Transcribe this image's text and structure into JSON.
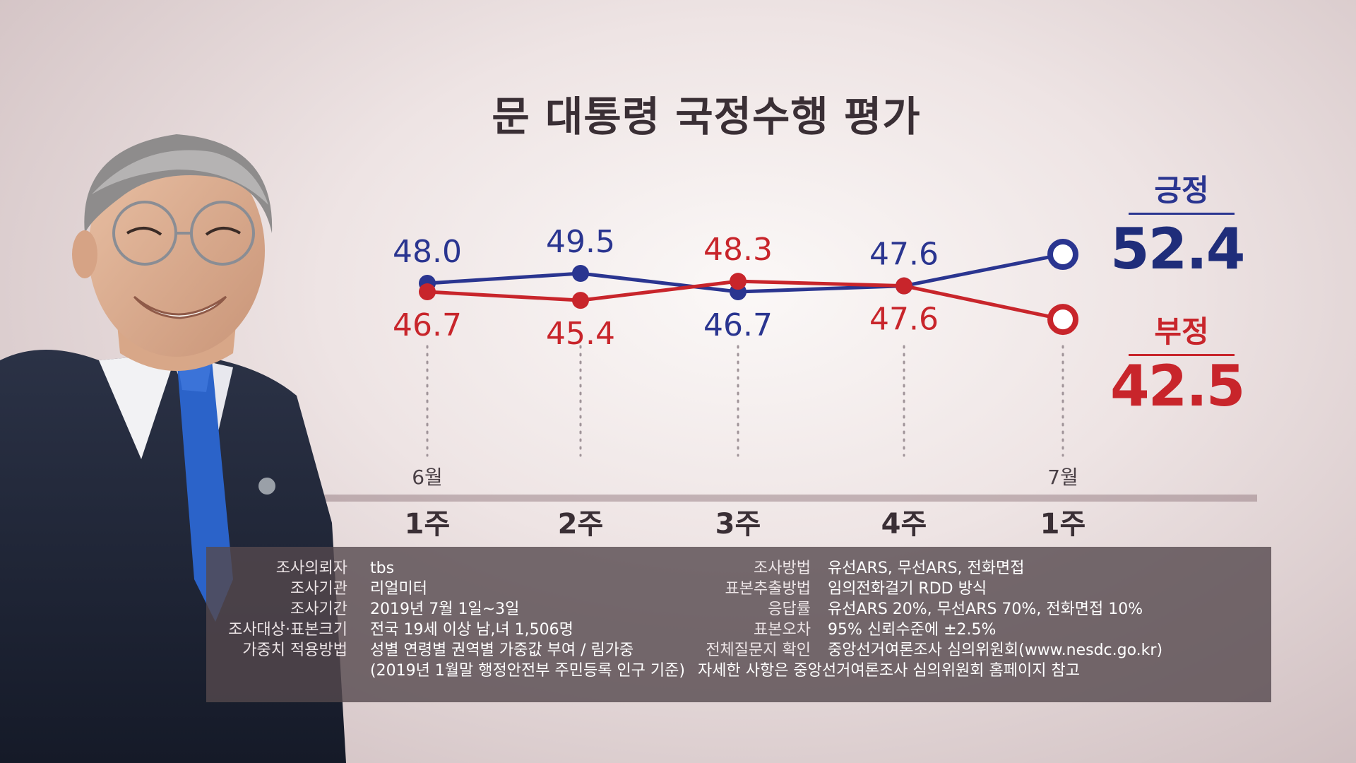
{
  "title": "문 대통령 국정수행 평가",
  "legend": {
    "positive_label": "긍정",
    "positive_value": "52.4",
    "negative_label": "부정",
    "negative_value": "42.5"
  },
  "colors": {
    "positive": "#2a3590",
    "negative": "#c8252b"
  },
  "chart_data": {
    "type": "line",
    "title": "문 대통령 국정수행 평가",
    "categories": [
      "1주",
      "2주",
      "3주",
      "4주",
      "1주"
    ],
    "month_labels": [
      "6월",
      "",
      "",
      "",
      "7월"
    ],
    "series": [
      {
        "name": "긍정",
        "values": [
          48.0,
          49.5,
          46.7,
          47.6,
          52.4
        ],
        "labels": [
          "48.0",
          "49.5",
          "46.7",
          "47.6",
          ""
        ],
        "color": "#2a3590"
      },
      {
        "name": "부정",
        "values": [
          46.7,
          45.4,
          48.3,
          47.6,
          42.5
        ],
        "labels": [
          "46.7",
          "45.4",
          "48.3",
          "47.6",
          ""
        ],
        "color": "#c8252b"
      }
    ],
    "latest_marker": "open-circle"
  },
  "info": {
    "left": [
      {
        "key": "조사의뢰자",
        "value": "tbs"
      },
      {
        "key": "조사기관",
        "value": "리얼미터"
      },
      {
        "key": "조사기간",
        "value": "2019년 7월 1일~3일"
      },
      {
        "key": "조사대상·표본크기",
        "value": "전국 19세 이상 남,녀 1,506명"
      },
      {
        "key": "가중치 적용방법",
        "value": "성별 연령별 권역별 가중값 부여 / 림가중"
      }
    ],
    "left_extra": "(2019년 1월말 행정안전부 주민등록 인구 기준)",
    "right": [
      {
        "key": "조사방법",
        "value": "유선ARS, 무선ARS, 전화면접"
      },
      {
        "key": "표본추출방법",
        "value": "임의전화걸기 RDD 방식"
      },
      {
        "key": "응답률",
        "value": "유선ARS 20%, 무선ARS 70%, 전화면접 10%"
      },
      {
        "key": "표본오차",
        "value": "95% 신뢰수준에 ±2.5%"
      },
      {
        "key": "전체질문지 확인",
        "value": "중앙선거여론조사 심의위원회(www.nesdc.go.kr)"
      }
    ],
    "right_extra": "자세한 사항은 중앙선거여론조사 심의위원회 홈페이지 참고"
  }
}
